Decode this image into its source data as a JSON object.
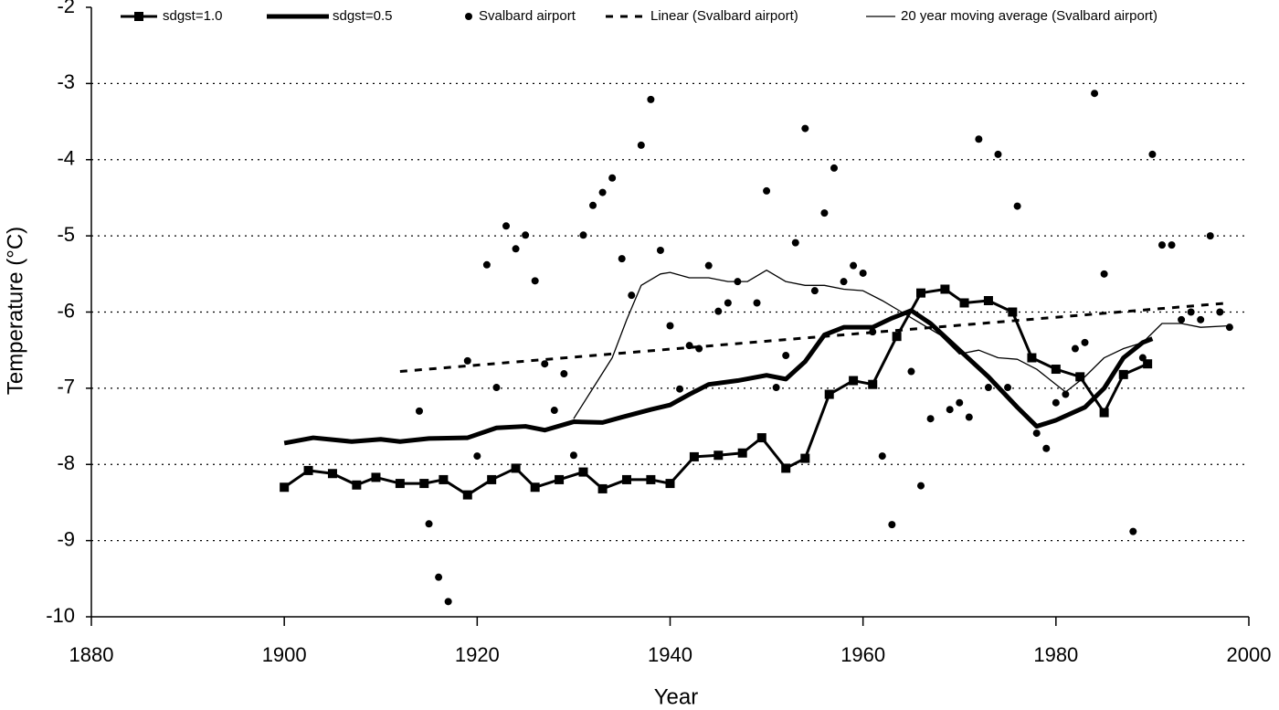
{
  "chart_data": {
    "type": "line",
    "xlabel": "Year",
    "ylabel": "Temperature (°C)",
    "xlim": [
      1880,
      2000
    ],
    "xticks": [
      1880,
      1900,
      1920,
      1940,
      1960,
      1980,
      2000
    ],
    "ylim": [
      -10,
      -2
    ],
    "yticks": [
      -10,
      -9,
      -8,
      -7,
      -6,
      -5,
      -4,
      -3,
      -2
    ],
    "grid": "dotted",
    "legend": "top",
    "series": [
      {
        "name": "sdgst=1.0",
        "color": "#000000",
        "type": "line",
        "line_width": 3,
        "marker": "square",
        "x": [
          1900,
          1902.5,
          1905,
          1907.5,
          1909.5,
          1912,
          1914.5,
          1916.5,
          1919,
          1921.5,
          1924,
          1926,
          1928.5,
          1931,
          1933,
          1935.5,
          1938,
          1940,
          1942.5,
          1945,
          1947.5,
          1949.5,
          1952,
          1954,
          1956.5,
          1959,
          1961,
          1963.5,
          1966,
          1968.5,
          1970.5,
          1973,
          1975.5,
          1977.5,
          1980,
          1982.5,
          1985,
          1987,
          1989.5
        ],
        "values": [
          -8.3,
          -8.08,
          -8.12,
          -8.27,
          -8.17,
          -8.25,
          -8.25,
          -8.2,
          -8.4,
          -8.2,
          -8.05,
          -8.3,
          -8.2,
          -8.1,
          -8.32,
          -8.2,
          -8.2,
          -8.25,
          -7.9,
          -7.88,
          -7.85,
          -7.65,
          -8.05,
          -7.92,
          -7.08,
          -6.9,
          -6.95,
          -6.32,
          -5.75,
          -5.7,
          -5.88,
          -5.85,
          -6.0,
          -6.6,
          -6.75,
          -6.85,
          -7.32,
          -6.82,
          -6.68
        ]
      },
      {
        "name": "sdgst=0.5",
        "color": "#000000",
        "type": "line",
        "line_width": 5,
        "x": [
          1900,
          1903,
          1907,
          1910,
          1912,
          1915,
          1919,
          1922,
          1925,
          1927,
          1930,
          1933,
          1935,
          1938,
          1940,
          1942,
          1944,
          1947,
          1950,
          1952,
          1954,
          1956,
          1958,
          1961,
          1963,
          1965,
          1967,
          1970,
          1973,
          1976,
          1978,
          1980,
          1983,
          1985,
          1987,
          1989,
          1990
        ],
        "values": [
          -7.72,
          -7.65,
          -7.7,
          -7.67,
          -7.7,
          -7.66,
          -7.65,
          -7.52,
          -7.5,
          -7.55,
          -7.44,
          -7.45,
          -7.38,
          -7.28,
          -7.22,
          -7.08,
          -6.95,
          -6.9,
          -6.83,
          -6.88,
          -6.65,
          -6.3,
          -6.2,
          -6.2,
          -6.08,
          -5.98,
          -6.15,
          -6.5,
          -6.85,
          -7.25,
          -7.5,
          -7.42,
          -7.25,
          -7.0,
          -6.6,
          -6.4,
          -6.35
        ]
      },
      {
        "name": "Svalbard airport",
        "color": "#000000",
        "type": "scatter",
        "x": [
          1914,
          1915,
          1916,
          1917,
          1919,
          1920,
          1921,
          1922,
          1923,
          1924,
          1925,
          1926,
          1927,
          1928,
          1929,
          1930,
          1931,
          1932,
          1933,
          1934,
          1935,
          1936,
          1937,
          1938,
          1939,
          1940,
          1941,
          1942,
          1943,
          1944,
          1945,
          1946,
          1947,
          1949,
          1950,
          1951,
          1952,
          1953,
          1954,
          1955,
          1956,
          1957,
          1958,
          1959,
          1960,
          1961,
          1962,
          1963,
          1965,
          1966,
          1967,
          1969,
          1970,
          1971,
          1972,
          1973,
          1974,
          1975,
          1976,
          1978,
          1979,
          1980,
          1981,
          1982,
          1983,
          1984,
          1985,
          1988,
          1989,
          1990,
          1991,
          1992,
          1993,
          1994,
          1995,
          1996,
          1997,
          1998
        ],
        "values": [
          -7.3,
          -8.78,
          -9.48,
          -9.8,
          -6.64,
          -7.89,
          -5.38,
          -6.99,
          -4.87,
          -5.17,
          -4.99,
          -5.59,
          -6.68,
          -7.29,
          -6.81,
          -7.88,
          -4.99,
          -4.6,
          -4.43,
          -4.24,
          -5.3,
          -5.78,
          -3.81,
          -3.21,
          -5.19,
          -6.18,
          -7.01,
          -6.44,
          -6.48,
          -5.39,
          -5.99,
          -5.88,
          -5.6,
          -5.88,
          -4.41,
          -6.99,
          -6.57,
          -5.09,
          -3.59,
          -5.72,
          -4.7,
          -4.11,
          -5.6,
          -5.39,
          -5.49,
          -6.26,
          -7.89,
          -8.79,
          -6.78,
          -8.28,
          -7.4,
          -7.28,
          -7.19,
          -7.38,
          -3.73,
          -6.99,
          -3.93,
          -6.99,
          -4.61,
          -7.59,
          -7.79,
          -7.19,
          -7.08,
          -6.48,
          -6.4,
          -3.13,
          -5.5,
          -8.88,
          -6.6,
          -3.93,
          -5.12,
          -5.12,
          -6.1,
          -6.0,
          -6.1,
          -5.0,
          -6.0,
          -6.2
        ]
      },
      {
        "name": "Linear (Svalbard airport)",
        "color": "#000000",
        "type": "line",
        "line_width": 3,
        "dash": "8 8",
        "x": [
          1912,
          1998
        ],
        "values": [
          -6.78,
          -5.88
        ]
      },
      {
        "name": "20 year moving average (Svalbard airport)",
        "color": "#000000",
        "type": "line",
        "line_width": 1.3,
        "x": [
          1930,
          1932,
          1934,
          1935.5,
          1937,
          1939,
          1940,
          1942,
          1944,
          1946,
          1948,
          1950,
          1952,
          1954,
          1956,
          1958,
          1960,
          1962,
          1964,
          1966,
          1968,
          1970,
          1972,
          1974,
          1976,
          1978,
          1980,
          1981,
          1983,
          1985,
          1987,
          1989,
          1991,
          1993,
          1995,
          1998
        ],
        "values": [
          -7.4,
          -7.0,
          -6.6,
          -6.1,
          -5.65,
          -5.5,
          -5.48,
          -5.55,
          -5.55,
          -5.6,
          -5.6,
          -5.45,
          -5.6,
          -5.65,
          -5.65,
          -5.7,
          -5.72,
          -5.85,
          -6.0,
          -6.15,
          -6.3,
          -6.55,
          -6.5,
          -6.6,
          -6.62,
          -6.75,
          -6.95,
          -7.05,
          -6.85,
          -6.6,
          -6.48,
          -6.4,
          -6.15,
          -6.15,
          -6.2,
          -6.18
        ]
      }
    ]
  }
}
